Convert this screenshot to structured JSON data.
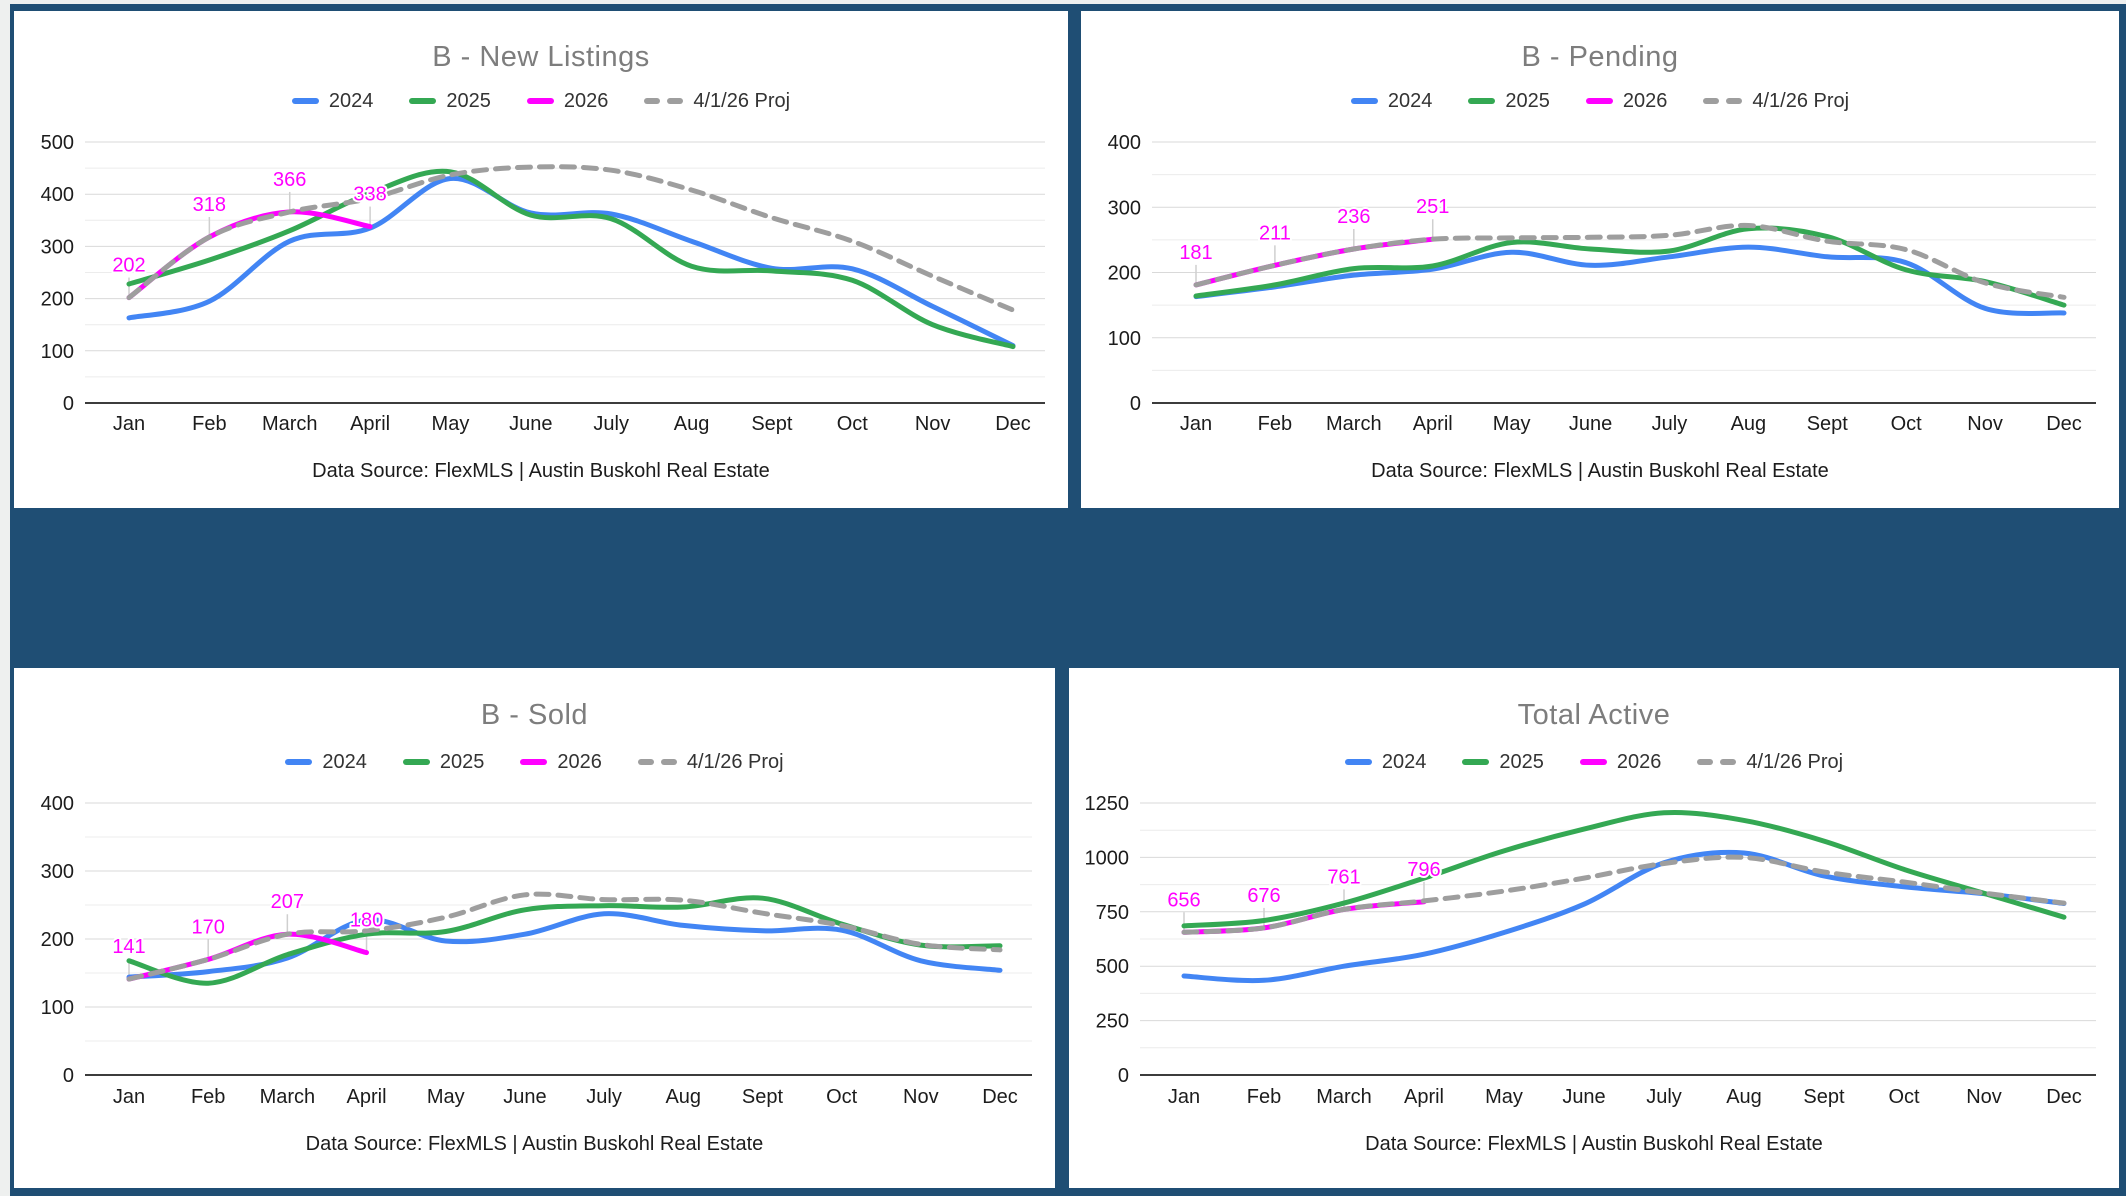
{
  "page": {
    "outer_background": "#eef0ef",
    "panel_color": "#1f4e74",
    "card_color": "#ffffff",
    "title_color": "#7d7d7d",
    "annotation_color": "#ff00ff"
  },
  "chart_data": [
    {
      "type": "line",
      "title": "B - New Listings",
      "source_note": "Data Source: FlexMLS | Austin Buskohl Real Estate",
      "categories": [
        "Jan",
        "Feb",
        "March",
        "April",
        "May",
        "June",
        "July",
        "Aug",
        "Sept",
        "Oct",
        "Nov",
        "Dec"
      ],
      "ylim": [
        0,
        500
      ],
      "yticks": [
        0,
        100,
        200,
        300,
        400,
        500
      ],
      "grid": "major-with-minor",
      "legend_position": "top",
      "series": [
        {
          "name": "2024",
          "color": "#4285F4",
          "dashed": false,
          "values": [
            163,
            195,
            310,
            335,
            430,
            364,
            362,
            310,
            258,
            257,
            185,
            110
          ]
        },
        {
          "name": "2025",
          "color": "#34A853",
          "dashed": false,
          "values": [
            228,
            274,
            330,
            402,
            443,
            360,
            353,
            262,
            253,
            235,
            150,
            108
          ]
        },
        {
          "name": "2026",
          "color": "#FF00FF",
          "dashed": false,
          "values": [
            202,
            318,
            366,
            338,
            null,
            null,
            null,
            null,
            null,
            null,
            null,
            null
          ],
          "annotations": [
            202,
            318,
            366,
            338
          ]
        },
        {
          "name": "4/1/26 Proj",
          "color": "#9E9E9E",
          "dashed": true,
          "values": [
            202,
            318,
            366,
            392,
            437,
            452,
            446,
            408,
            355,
            310,
            243,
            178
          ]
        }
      ]
    },
    {
      "type": "line",
      "title": "B - Pending",
      "source_note": "Data Source: FlexMLS | Austin Buskohl Real Estate",
      "categories": [
        "Jan",
        "Feb",
        "March",
        "April",
        "May",
        "June",
        "July",
        "Aug",
        "Sept",
        "Oct",
        "Nov",
        "Dec"
      ],
      "ylim": [
        0,
        400
      ],
      "yticks": [
        0,
        100,
        200,
        300,
        400
      ],
      "grid": "major-with-minor",
      "legend_position": "top",
      "series": [
        {
          "name": "2024",
          "color": "#4285F4",
          "dashed": false,
          "values": [
            163,
            178,
            196,
            205,
            231,
            211,
            224,
            239,
            224,
            215,
            145,
            138
          ]
        },
        {
          "name": "2025",
          "color": "#34A853",
          "dashed": false,
          "values": [
            164,
            181,
            206,
            210,
            246,
            236,
            233,
            267,
            255,
            204,
            186,
            150
          ]
        },
        {
          "name": "2026",
          "color": "#FF00FF",
          "dashed": false,
          "values": [
            181,
            211,
            236,
            251,
            null,
            null,
            null,
            null,
            null,
            null,
            null,
            null
          ],
          "annotations": [
            181,
            211,
            236,
            251
          ]
        },
        {
          "name": "4/1/26 Proj",
          "color": "#9E9E9E",
          "dashed": true,
          "values": [
            181,
            211,
            236,
            251,
            253,
            254,
            257,
            272,
            248,
            235,
            184,
            162
          ]
        }
      ]
    },
    {
      "type": "line",
      "title": "B - Sold",
      "source_note": "Data Source: FlexMLS | Austin Buskohl Real Estate",
      "categories": [
        "Jan",
        "Feb",
        "March",
        "April",
        "May",
        "June",
        "July",
        "Aug",
        "Sept",
        "Oct",
        "Nov",
        "Dec"
      ],
      "ylim": [
        0,
        400
      ],
      "yticks": [
        0,
        100,
        200,
        300,
        400
      ],
      "grid": "major-with-minor",
      "legend_position": "top",
      "series": [
        {
          "name": "2024",
          "color": "#4285F4",
          "dashed": false,
          "values": [
            144,
            152,
            172,
            228,
            197,
            207,
            237,
            220,
            212,
            213,
            168,
            154
          ]
        },
        {
          "name": "2025",
          "color": "#34A853",
          "dashed": false,
          "values": [
            168,
            135,
            177,
            207,
            211,
            243,
            249,
            247,
            260,
            222,
            191,
            190
          ]
        },
        {
          "name": "2026",
          "color": "#FF00FF",
          "dashed": false,
          "values": [
            141,
            170,
            207,
            180,
            null,
            null,
            null,
            null,
            null,
            null,
            null,
            null
          ],
          "annotations": [
            141,
            170,
            207,
            180
          ]
        },
        {
          "name": "4/1/26 Proj",
          "color": "#9E9E9E",
          "dashed": true,
          "values": [
            141,
            170,
            207,
            212,
            232,
            265,
            258,
            257,
            238,
            220,
            192,
            184
          ]
        }
      ]
    },
    {
      "type": "line",
      "title": "Total Active",
      "source_note": "Data Source: FlexMLS | Austin Buskohl Real Estate",
      "categories": [
        "Jan",
        "Feb",
        "March",
        "April",
        "May",
        "June",
        "July",
        "Aug",
        "Sept",
        "Oct",
        "Nov",
        "Dec"
      ],
      "ylim": [
        0,
        1250
      ],
      "yticks": [
        0,
        250,
        500,
        750,
        1000,
        1250
      ],
      "grid": "major-with-minor",
      "legend_position": "top",
      "series": [
        {
          "name": "2024",
          "color": "#4285F4",
          "dashed": false,
          "values": [
            455,
            435,
            500,
            555,
            655,
            785,
            975,
            1020,
            915,
            865,
            833,
            788
          ]
        },
        {
          "name": "2025",
          "color": "#34A853",
          "dashed": false,
          "values": [
            685,
            710,
            790,
            905,
            1030,
            1130,
            1205,
            1170,
            1075,
            945,
            835,
            725
          ]
        },
        {
          "name": "2026",
          "color": "#FF00FF",
          "dashed": false,
          "values": [
            656,
            676,
            761,
            796,
            null,
            null,
            null,
            null,
            null,
            null,
            null,
            null
          ],
          "annotations": [
            656,
            676,
            761,
            796
          ]
        },
        {
          "name": "4/1/26 Proj",
          "color": "#9E9E9E",
          "dashed": true,
          "values": [
            656,
            676,
            761,
            800,
            845,
            905,
            972,
            1000,
            933,
            887,
            836,
            790
          ]
        }
      ]
    }
  ]
}
